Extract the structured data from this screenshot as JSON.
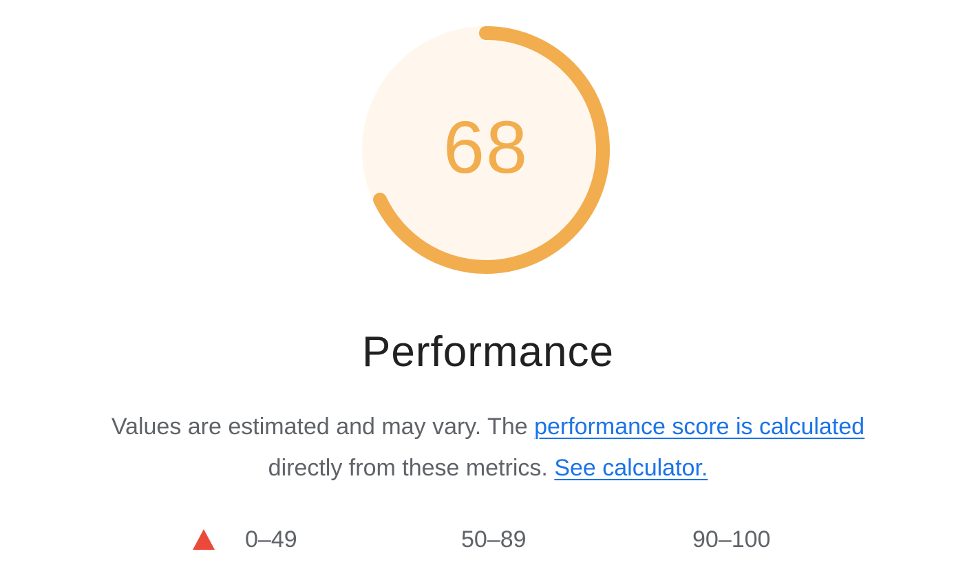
{
  "gauge": {
    "score": "68",
    "fraction": 0.68,
    "color": "#f2ad4e",
    "background_color": "#fff7ed"
  },
  "category": {
    "title": "Performance"
  },
  "description": {
    "text_before": "Values are estimated and may vary. The ",
    "link_score": "performance score is calculated",
    "text_middle": " directly from these metrics. ",
    "link_calculator": "See calculator."
  },
  "legend": {
    "fail": {
      "range": "0–49",
      "icon": "red-triangle-icon",
      "color": "#eb4a3b"
    },
    "average": {
      "range": "50–89",
      "icon": "orange-square-icon"
    },
    "pass": {
      "range": "90–100",
      "icon": "green-circle-icon"
    }
  }
}
